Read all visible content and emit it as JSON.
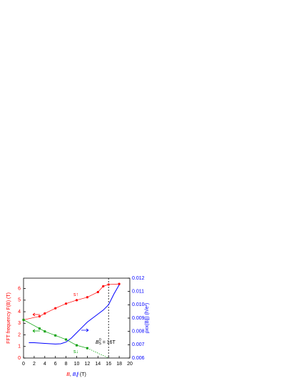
{
  "chart_data": {
    "type": "line",
    "xlim": [
      0,
      20
    ],
    "xticks": [
      0,
      2,
      4,
      6,
      8,
      10,
      12,
      14,
      16,
      18,
      20
    ],
    "ylim": [
      0,
      6.9
    ],
    "yticks": [
      0,
      1,
      2,
      3,
      4,
      5,
      6
    ],
    "y2lim": [
      0.006,
      0.012
    ],
    "y2ticks": [
      0.006,
      0.007,
      0.008,
      0.009,
      {
        "value": 0.01,
        "label": "0.010"
      },
      0.011,
      0.012
    ],
    "y_label": "FFT frequency F(B) (T)",
    "y2_label": "ρxx(B∥) (h/e²)",
    "x_label_parts": [
      "B",
      ", ",
      "B∥",
      " (T)"
    ],
    "annotations": [
      "s↑",
      "s↓",
      "B",
      "S",
      "0",
      " = 16T"
    ],
    "vline_x": 16,
    "series": [
      {
        "color": "#ff0000",
        "marker": "circle",
        "x": [
          0,
          3,
          4,
          6,
          8,
          10,
          12,
          14,
          15,
          16,
          18
        ],
        "values": [
          3.3,
          3.6,
          3.85,
          4.3,
          4.7,
          5.0,
          5.25,
          5.7,
          6.2,
          6.35,
          6.4
        ]
      },
      {
        "color": "#00a000",
        "marker": "square",
        "x": [
          0,
          3,
          4,
          6,
          8,
          10,
          12
        ],
        "values": [
          3.3,
          2.55,
          2.3,
          1.95,
          1.6,
          1.1,
          0.85
        ]
      },
      {
        "color": "#00a000",
        "dash": true,
        "x": [
          12,
          16
        ],
        "values": [
          0.85,
          0
        ]
      },
      {
        "color": "#0000ff",
        "axis": "y2",
        "x": [
          1,
          2,
          4,
          6,
          7,
          8,
          9,
          10,
          11,
          12,
          13,
          14,
          15,
          16,
          17,
          18
        ],
        "values": [
          0.00715,
          0.00715,
          0.0071,
          0.00705,
          0.00707,
          0.0072,
          0.0075,
          0.0079,
          0.0083,
          0.0087,
          0.009,
          0.0093,
          0.0096,
          0.01,
          0.0108,
          0.0115
        ]
      }
    ]
  }
}
